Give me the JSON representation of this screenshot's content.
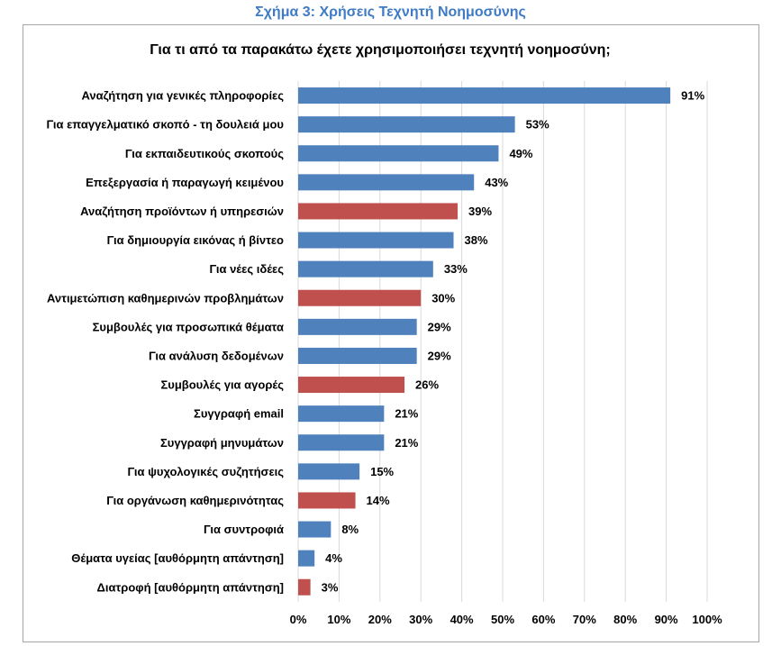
{
  "figure_caption": "Σχήμα 3: Χρήσεις Τεχνητή Νοημοσύνης",
  "colors": {
    "blue": "#4f81bd",
    "red": "#c0504d"
  },
  "chart_data": {
    "type": "bar",
    "orientation": "horizontal",
    "title": "Για τι από τα παρακάτω έχετε χρησιμοποιήσει τεχνητή νοημοσύνη;",
    "xlabel": "",
    "ylabel": "",
    "xlim": [
      0,
      100
    ],
    "grid": true,
    "x_ticks": [
      "0%",
      "10%",
      "20%",
      "30%",
      "40%",
      "50%",
      "60%",
      "70%",
      "80%",
      "90%",
      "100%"
    ],
    "categories": [
      "Αναζήτηση για γενικές πληροφορίες",
      "Για επαγγελματικό σκοπό - τη δουλειά μου",
      "Για εκπαιδευτικούς σκοπούς",
      "Επεξεργασία ή παραγωγή κειμένου",
      "Αναζήτηση προϊόντων ή υπηρεσιών",
      "Για δημιουργία εικόνας ή βίντεο",
      "Για νέες ιδέες",
      "Αντιμετώπιση καθημερινών προβλημάτων",
      "Συμβουλές για προσωπικά θέματα",
      "Για ανάλυση δεδομένων",
      "Συμβουλές για αγορές",
      "Συγγραφή email",
      "Συγγραφή μηνυμάτων",
      "Για ψυχολογικές συζητήσεις",
      "Για οργάνωση καθημερινότητας",
      "Για συντροφιά",
      "Θέματα υγείας [αυθόρμητη απάντηση]",
      "Διατροφή [αυθόρμητη απάντηση]"
    ],
    "values": [
      91,
      53,
      49,
      43,
      39,
      38,
      33,
      30,
      29,
      29,
      26,
      21,
      21,
      15,
      14,
      8,
      4,
      3
    ],
    "value_labels": [
      "91%",
      "53%",
      "49%",
      "43%",
      "39%",
      "38%",
      "33%",
      "30%",
      "29%",
      "29%",
      "26%",
      "21%",
      "21%",
      "15%",
      "14%",
      "8%",
      "4%",
      "3%"
    ],
    "bar_colors": [
      "blue",
      "blue",
      "blue",
      "blue",
      "red",
      "blue",
      "blue",
      "red",
      "blue",
      "blue",
      "red",
      "blue",
      "blue",
      "blue",
      "red",
      "blue",
      "blue",
      "red"
    ]
  }
}
